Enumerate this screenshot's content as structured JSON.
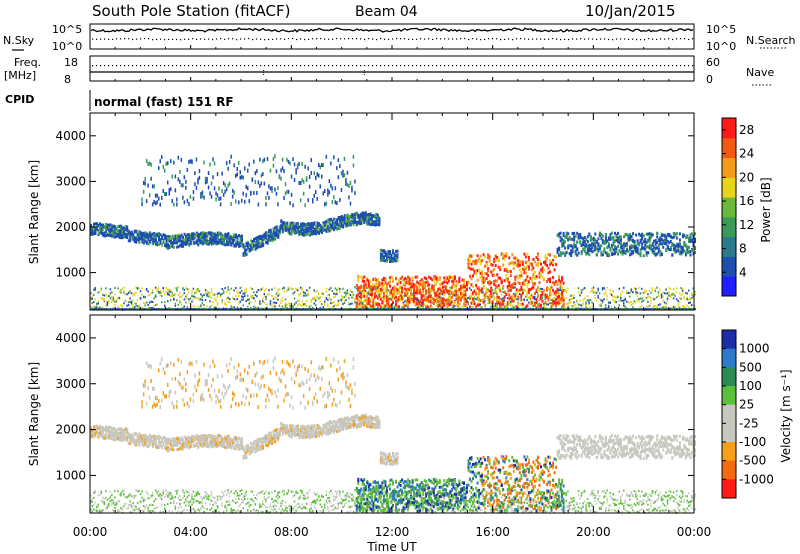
{
  "header": {
    "station": "South Pole Station (fitACF)",
    "beam": "Beam 04",
    "date": "10/Jan/2015"
  },
  "noise_panel": {
    "left_label": "N.Sky",
    "right_label": "N.Search",
    "left_ticks": [
      "10^5",
      "10^0"
    ],
    "right_ticks": [
      "10^5",
      "10^0"
    ]
  },
  "freq_panel": {
    "left_label_1": "Freq.",
    "left_label_2": "[MHz]",
    "left_ticks": [
      "18",
      "8"
    ],
    "right_label": "Nave",
    "right_ticks": [
      "60",
      "0"
    ]
  },
  "cpid": {
    "label": "CPID",
    "value": "normal (fast) 151 RF"
  },
  "colors": {
    "power_scale": [
      "#1f1fff",
      "#1d4fb0",
      "#2a7a8c",
      "#3a9a5a",
      "#6ab83a",
      "#e8d41a",
      "#f59b1a",
      "#f25a12",
      "#ff1a1a"
    ],
    "velocity_scale": [
      "#1c2fa8",
      "#2d7ac8",
      "#2e8a55",
      "#5ac03a",
      "#c8c8c0",
      "#c8c8c0",
      "#f5a01a",
      "#f46a12",
      "#ff1a1a"
    ]
  },
  "chart_data": [
    {
      "type": "heatmap",
      "title": "",
      "xlabel": "Time UT",
      "ylabel": "Slant Range [km]",
      "x_ticks": [
        "00:00",
        "04:00",
        "08:00",
        "12:00",
        "16:00",
        "20:00",
        "00:00"
      ],
      "y_ticks": [
        "1000",
        "2000",
        "3000",
        "4000"
      ],
      "xlim_hours": [
        0,
        24
      ],
      "ylim_km": [
        180,
        4500
      ],
      "colorbar": {
        "label": "Power [dB]",
        "ticks": [
          "4",
          "8",
          "12",
          "16",
          "20",
          "24",
          "28"
        ],
        "range": [
          0,
          30
        ]
      }
    },
    {
      "type": "heatmap",
      "title": "",
      "xlabel": "Time UT",
      "ylabel": "Slant Range [km]",
      "x_ticks": [
        "00:00",
        "04:00",
        "08:00",
        "12:00",
        "16:00",
        "20:00",
        "00:00"
      ],
      "y_ticks": [
        "1000",
        "2000",
        "3000",
        "4000"
      ],
      "xlim_hours": [
        0,
        24
      ],
      "ylim_km": [
        180,
        4500
      ],
      "colorbar": {
        "label": "Velocity [m s⁻¹]",
        "ticks": [
          "1000",
          "500",
          "100",
          "25",
          "-25",
          "-100",
          "-500",
          "-1000"
        ]
      }
    }
  ]
}
